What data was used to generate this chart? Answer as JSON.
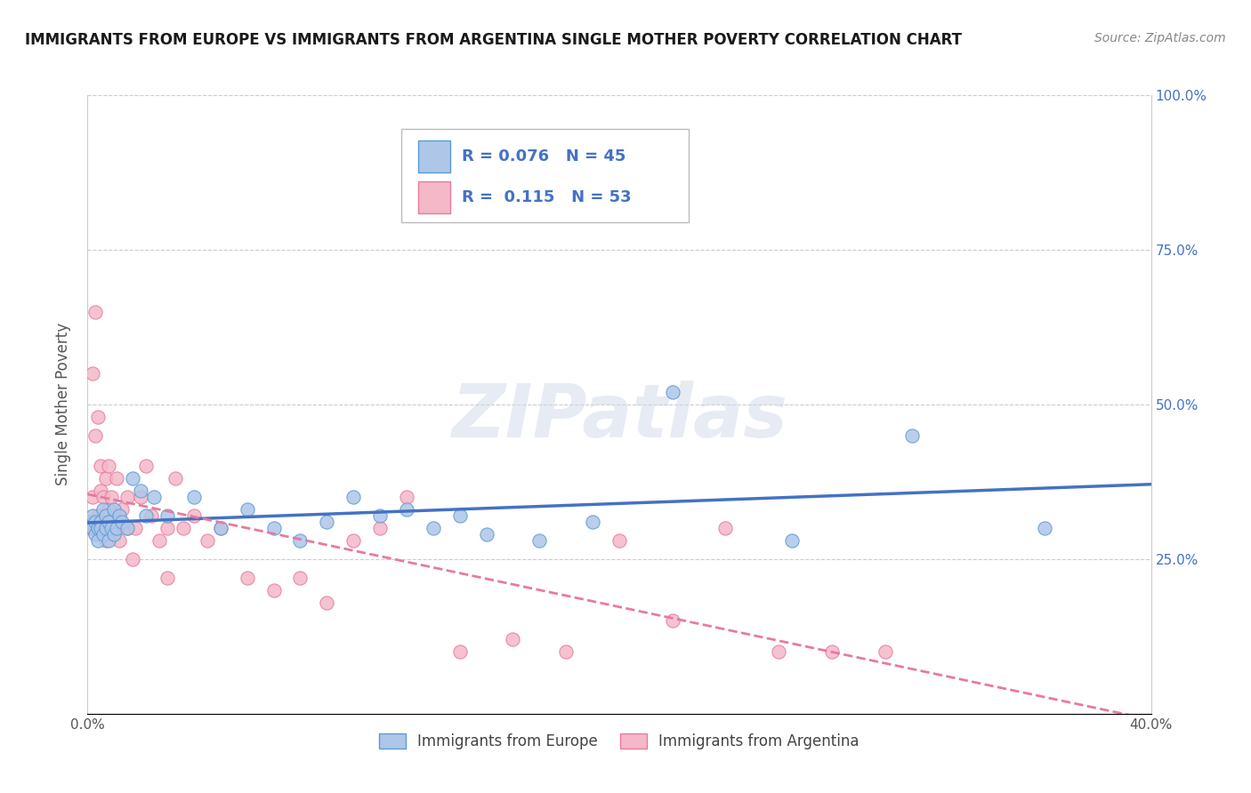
{
  "title": "IMMIGRANTS FROM EUROPE VS IMMIGRANTS FROM ARGENTINA SINGLE MOTHER POVERTY CORRELATION CHART",
  "source": "Source: ZipAtlas.com",
  "ylabel": "Single Mother Poverty",
  "xlim": [
    0.0,
    0.4
  ],
  "ylim": [
    0.0,
    1.0
  ],
  "yticks": [
    0.0,
    0.25,
    0.5,
    0.75,
    1.0
  ],
  "ytick_labels_left": [
    "",
    "25.0%",
    "50.0%",
    "75.0%",
    "100.0%"
  ],
  "ytick_labels_right": [
    "",
    "25.0%",
    "50.0%",
    "75.0%",
    "100.0%"
  ],
  "xticks": [
    0.0,
    0.1,
    0.2,
    0.3,
    0.4
  ],
  "xtick_labels": [
    "0.0%",
    "",
    "",
    "",
    "40.0%"
  ],
  "legend_europe_label": "Immigrants from Europe",
  "legend_argentina_label": "Immigrants from Argentina",
  "europe_R": "0.076",
  "europe_N": "45",
  "argentina_R": "0.115",
  "argentina_N": "53",
  "europe_color": "#aec6e8",
  "argentina_color": "#f4b8c8",
  "europe_edge_color": "#5b9bd5",
  "argentina_edge_color": "#e87a9f",
  "europe_line_color": "#4472c4",
  "argentina_line_color": "#e87a9f",
  "background_color": "#ffffff",
  "watermark": "ZIPatlas",
  "europe_scatter_x": [
    0.001,
    0.002,
    0.002,
    0.003,
    0.003,
    0.004,
    0.004,
    0.005,
    0.005,
    0.006,
    0.006,
    0.007,
    0.007,
    0.008,
    0.008,
    0.009,
    0.01,
    0.01,
    0.011,
    0.012,
    0.013,
    0.015,
    0.017,
    0.02,
    0.022,
    0.025,
    0.03,
    0.04,
    0.05,
    0.06,
    0.07,
    0.08,
    0.09,
    0.1,
    0.11,
    0.12,
    0.13,
    0.14,
    0.15,
    0.17,
    0.19,
    0.22,
    0.265,
    0.31,
    0.36
  ],
  "europe_scatter_y": [
    0.31,
    0.3,
    0.32,
    0.29,
    0.31,
    0.3,
    0.28,
    0.31,
    0.3,
    0.33,
    0.29,
    0.3,
    0.32,
    0.28,
    0.31,
    0.3,
    0.33,
    0.29,
    0.3,
    0.32,
    0.31,
    0.3,
    0.38,
    0.36,
    0.32,
    0.35,
    0.32,
    0.35,
    0.3,
    0.33,
    0.3,
    0.28,
    0.31,
    0.35,
    0.32,
    0.33,
    0.3,
    0.32,
    0.29,
    0.28,
    0.31,
    0.52,
    0.28,
    0.45,
    0.3
  ],
  "argentina_scatter_x": [
    0.001,
    0.001,
    0.002,
    0.002,
    0.003,
    0.003,
    0.004,
    0.004,
    0.005,
    0.005,
    0.006,
    0.006,
    0.007,
    0.007,
    0.008,
    0.008,
    0.009,
    0.01,
    0.01,
    0.011,
    0.012,
    0.013,
    0.015,
    0.015,
    0.017,
    0.018,
    0.02,
    0.022,
    0.024,
    0.027,
    0.03,
    0.033,
    0.036,
    0.04,
    0.045,
    0.05,
    0.06,
    0.07,
    0.08,
    0.09,
    0.1,
    0.11,
    0.12,
    0.14,
    0.16,
    0.18,
    0.2,
    0.22,
    0.24,
    0.26,
    0.28,
    0.3,
    0.03
  ],
  "argentina_scatter_y": [
    0.31,
    0.3,
    0.55,
    0.35,
    0.45,
    0.65,
    0.32,
    0.48,
    0.4,
    0.36,
    0.35,
    0.3,
    0.38,
    0.28,
    0.33,
    0.4,
    0.35,
    0.3,
    0.32,
    0.38,
    0.28,
    0.33,
    0.35,
    0.3,
    0.25,
    0.3,
    0.35,
    0.4,
    0.32,
    0.28,
    0.3,
    0.38,
    0.3,
    0.32,
    0.28,
    0.3,
    0.22,
    0.2,
    0.22,
    0.18,
    0.28,
    0.3,
    0.35,
    0.1,
    0.12,
    0.1,
    0.28,
    0.15,
    0.3,
    0.1,
    0.1,
    0.1,
    0.22
  ],
  "europe_trend_color": "#4472c4",
  "argentina_trend_color": "#e87a9f",
  "europe_trend_solid": true,
  "argentina_trend_dashed": true
}
